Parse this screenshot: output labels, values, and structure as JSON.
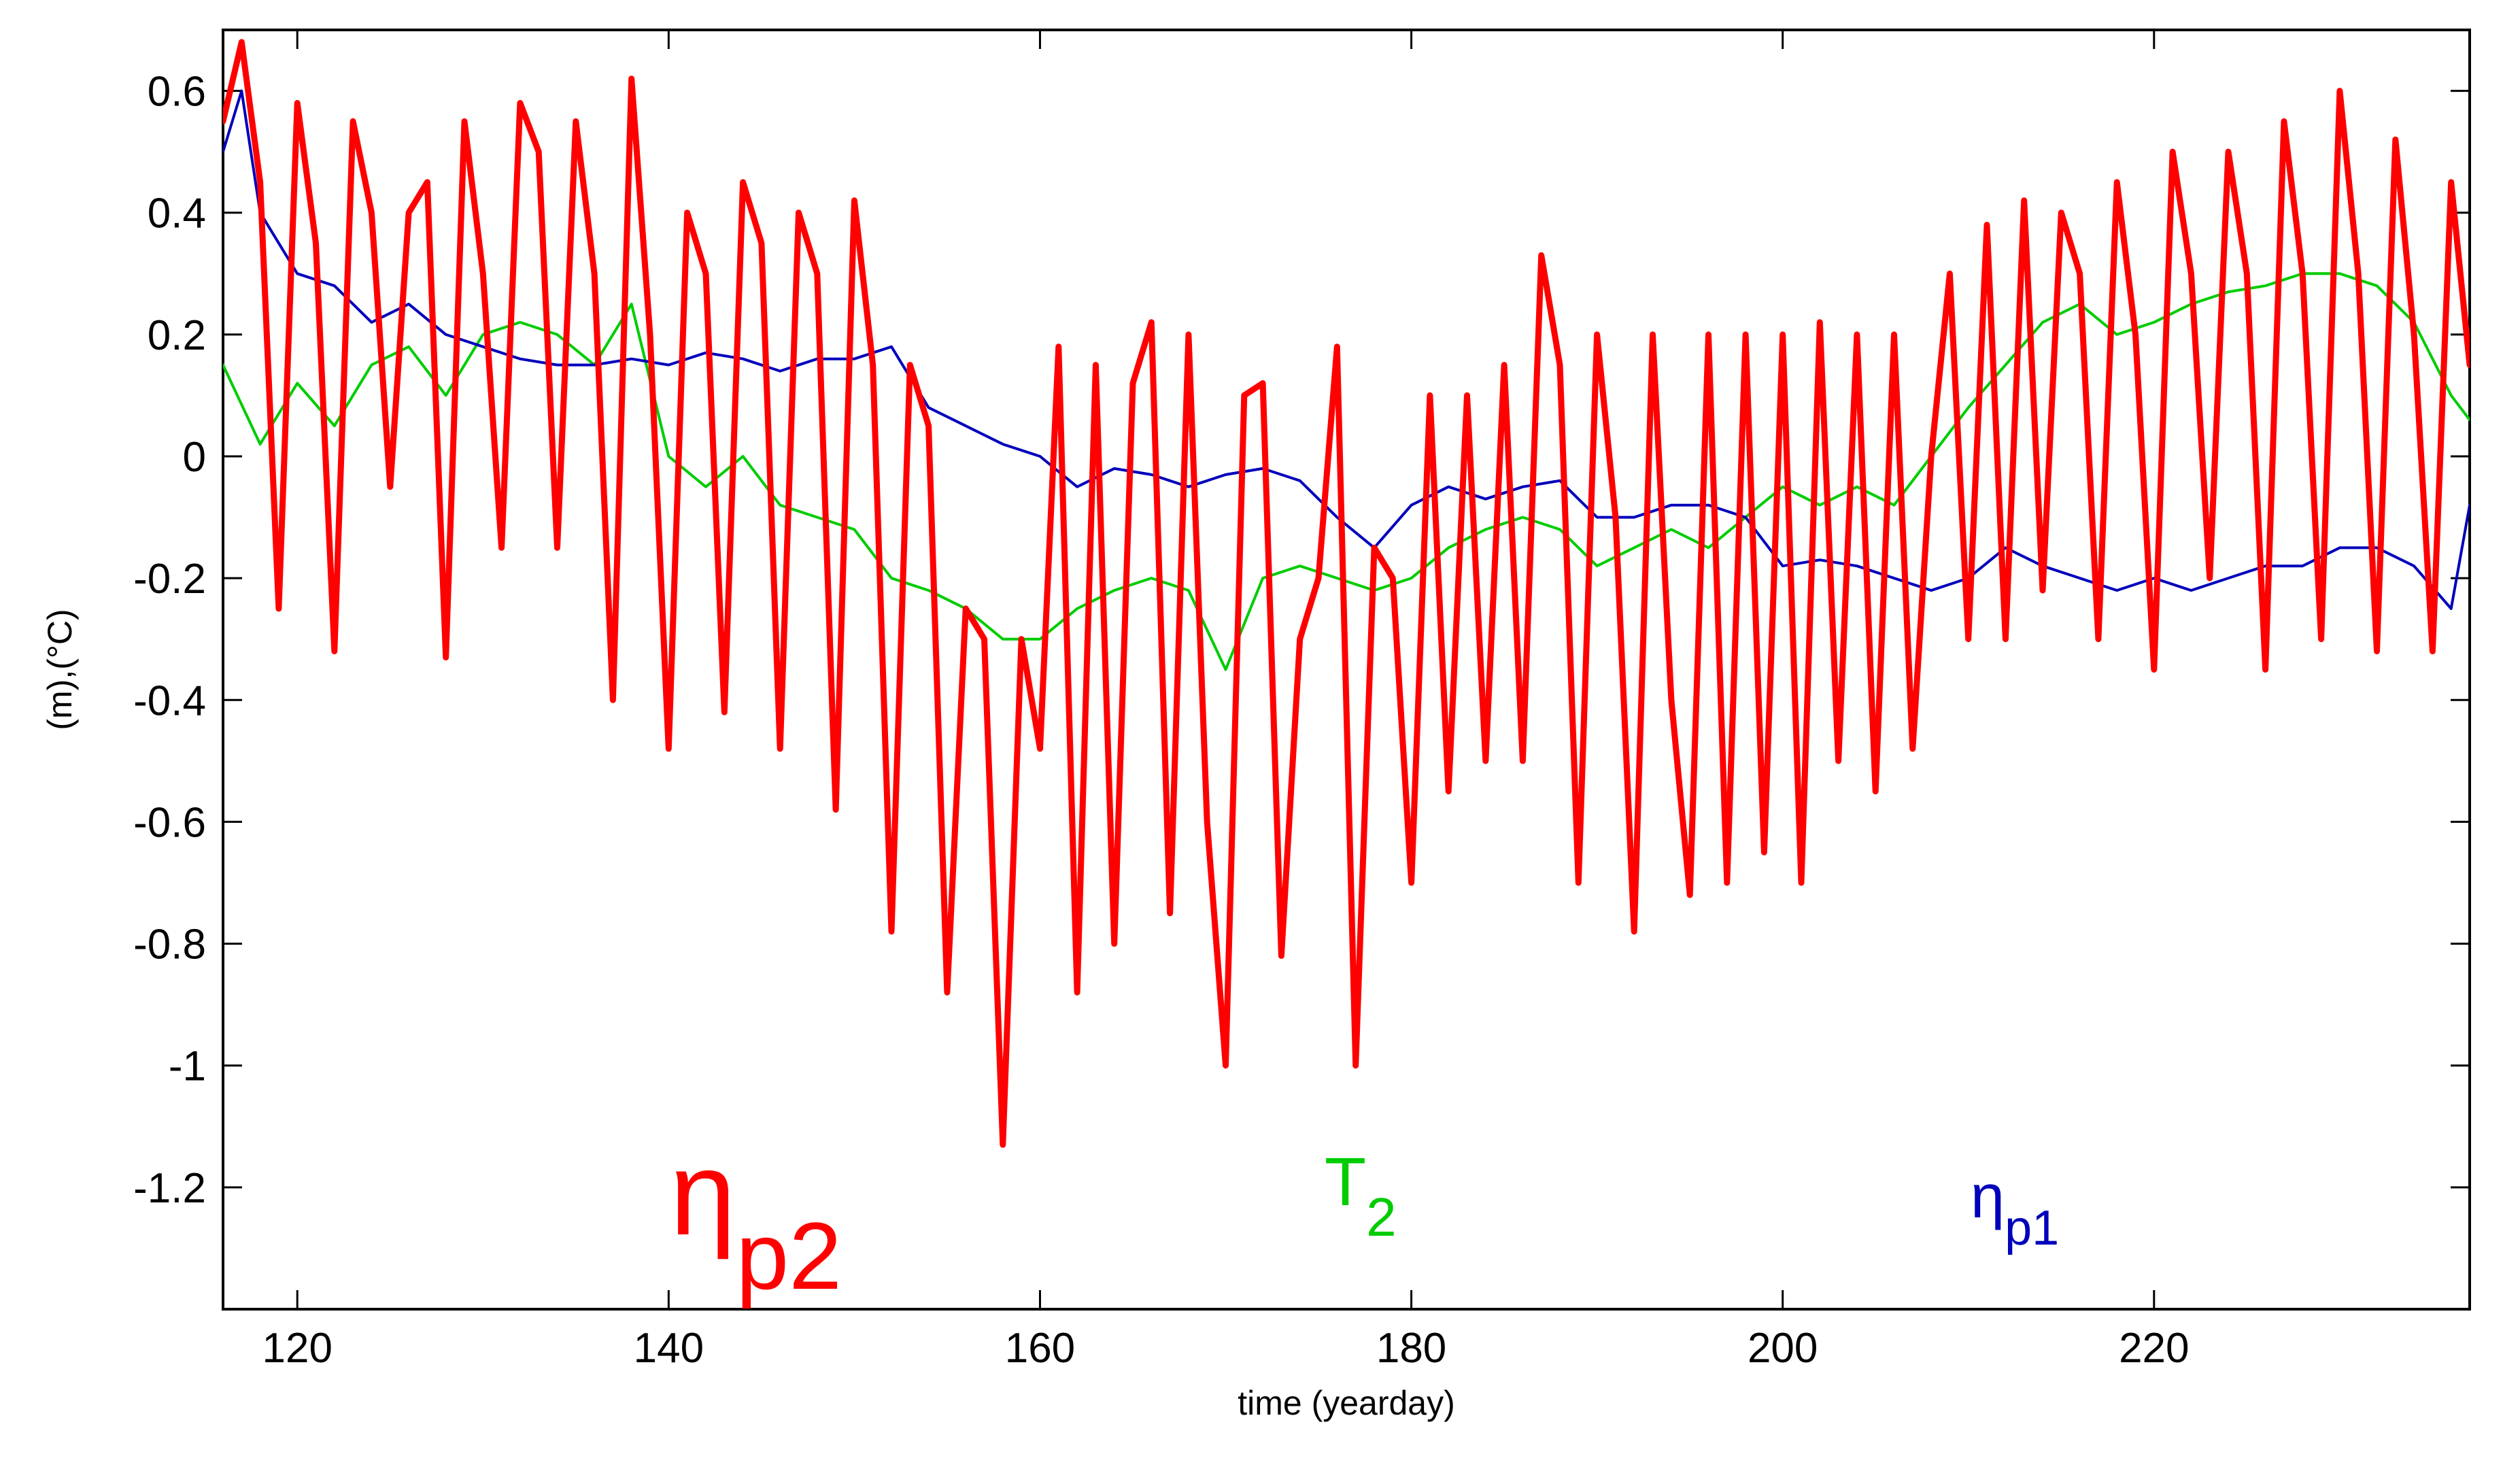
{
  "chart_data": {
    "type": "line",
    "title": "",
    "xlabel": "time (yearday)",
    "ylabel": "(m),(°C)",
    "xlim": [
      116,
      237
    ],
    "ylim": [
      -1.4,
      0.7
    ],
    "xticks": [
      120,
      140,
      160,
      180,
      200,
      220
    ],
    "yticks": [
      0.6,
      0.4,
      0.2,
      0,
      -0.2,
      -0.4,
      -0.6,
      -0.8,
      -1,
      -1.2
    ],
    "xtick_labels": [
      "120",
      "140",
      "160",
      "180",
      "200",
      "220"
    ],
    "ytick_labels": [
      "0.6",
      "0.4",
      "0.2",
      "0",
      "-0.2",
      "-0.4",
      "-0.6",
      "-0.8",
      "-1",
      "-1.2"
    ],
    "grid": false,
    "series": [
      {
        "name": "eta_p2",
        "label_main": "η",
        "label_sub": "p2",
        "color": "#ff0000",
        "x": [
          116,
          117,
          118,
          119,
          120,
          121,
          122,
          123,
          124,
          125,
          126,
          127,
          128,
          129,
          130,
          131,
          132,
          133,
          134,
          135,
          136,
          137,
          138,
          139,
          140,
          141,
          142,
          143,
          144,
          145,
          146,
          147,
          148,
          149,
          150,
          151,
          152,
          153,
          154,
          155,
          156,
          157,
          158,
          159,
          160,
          161,
          162,
          163,
          164,
          165,
          166,
          167,
          168,
          169,
          170,
          171,
          172,
          173,
          174,
          175,
          176,
          177,
          178,
          179,
          180,
          181,
          182,
          183,
          184,
          185,
          186,
          187,
          188,
          189,
          190,
          191,
          192,
          193,
          194,
          195,
          196,
          197,
          198,
          199,
          200,
          201,
          202,
          203,
          204,
          205,
          206,
          207,
          208,
          209,
          210,
          211,
          212,
          213,
          214,
          215,
          216,
          217,
          218,
          219,
          220,
          221,
          222,
          223,
          224,
          225,
          226,
          227,
          228,
          229,
          230,
          231,
          232,
          233,
          234,
          235,
          236,
          237
        ],
        "y": [
          0.55,
          0.68,
          0.45,
          -0.25,
          0.58,
          0.35,
          -0.32,
          0.55,
          0.4,
          -0.05,
          0.4,
          0.45,
          -0.33,
          0.55,
          0.3,
          -0.15,
          0.58,
          0.5,
          -0.15,
          0.55,
          0.3,
          -0.4,
          0.62,
          0.2,
          -0.48,
          0.4,
          0.3,
          -0.42,
          0.45,
          0.35,
          -0.48,
          0.4,
          0.3,
          -0.58,
          0.42,
          0.15,
          -0.78,
          0.15,
          0.05,
          -0.88,
          -0.25,
          -0.3,
          -1.13,
          -0.3,
          -0.48,
          0.18,
          -0.88,
          0.15,
          -0.8,
          0.12,
          0.22,
          -0.75,
          0.2,
          -0.6,
          -1.0,
          0.1,
          0.12,
          -0.82,
          -0.3,
          -0.2,
          0.18,
          -1.0,
          -0.15,
          -0.2,
          -0.7,
          0.1,
          -0.55,
          0.1,
          -0.5,
          0.15,
          -0.5,
          0.33,
          0.15,
          -0.7,
          0.2,
          -0.1,
          -0.78,
          0.2,
          -0.4,
          -0.72,
          0.2,
          -0.7,
          0.2,
          -0.65,
          0.2,
          -0.7,
          0.22,
          -0.5,
          0.2,
          -0.55,
          0.2,
          -0.48,
          0.0,
          0.3,
          -0.3,
          0.38,
          -0.3,
          0.42,
          -0.22,
          0.4,
          0.3,
          -0.3,
          0.45,
          0.2,
          -0.35,
          0.5,
          0.3,
          -0.2,
          0.5,
          0.3,
          -0.35,
          0.55,
          0.3,
          -0.3,
          0.6,
          0.3,
          -0.32,
          0.52,
          0.2,
          -0.32,
          0.45,
          0.15
        ]
      },
      {
        "name": "T2",
        "label_main": "T",
        "label_sub": "2",
        "color": "#00cc00",
        "x": [
          116,
          118,
          120,
          122,
          124,
          126,
          128,
          130,
          132,
          134,
          136,
          138,
          140,
          142,
          144,
          146,
          148,
          150,
          152,
          154,
          156,
          158,
          160,
          162,
          164,
          166,
          168,
          170,
          172,
          174,
          176,
          178,
          180,
          182,
          184,
          186,
          188,
          190,
          192,
          194,
          196,
          198,
          200,
          202,
          204,
          206,
          208,
          210,
          212,
          214,
          216,
          218,
          220,
          222,
          224,
          226,
          228,
          230,
          232,
          234,
          236,
          237
        ],
        "y": [
          0.15,
          0.02,
          0.12,
          0.05,
          0.15,
          0.18,
          0.1,
          0.2,
          0.22,
          0.2,
          0.15,
          0.25,
          0.0,
          -0.05,
          0.0,
          -0.08,
          -0.1,
          -0.12,
          -0.2,
          -0.22,
          -0.25,
          -0.3,
          -0.3,
          -0.25,
          -0.22,
          -0.2,
          -0.22,
          -0.35,
          -0.2,
          -0.18,
          -0.2,
          -0.22,
          -0.2,
          -0.15,
          -0.12,
          -0.1,
          -0.12,
          -0.18,
          -0.15,
          -0.12,
          -0.15,
          -0.1,
          -0.05,
          -0.08,
          -0.05,
          -0.08,
          0.0,
          0.08,
          0.15,
          0.22,
          0.25,
          0.2,
          0.22,
          0.25,
          0.27,
          0.28,
          0.3,
          0.3,
          0.28,
          0.22,
          0.1,
          0.06
        ]
      },
      {
        "name": "eta_p1",
        "label_main": "η",
        "label_sub": "p1",
        "color": "#0000bb",
        "x": [
          116,
          117,
          118,
          120,
          122,
          124,
          126,
          128,
          130,
          132,
          134,
          136,
          138,
          140,
          142,
          144,
          146,
          148,
          150,
          152,
          154,
          156,
          158,
          160,
          162,
          164,
          166,
          168,
          170,
          172,
          174,
          176,
          178,
          180,
          182,
          184,
          186,
          188,
          190,
          192,
          194,
          196,
          198,
          200,
          202,
          204,
          206,
          208,
          210,
          212,
          214,
          216,
          218,
          220,
          222,
          224,
          226,
          228,
          230,
          232,
          234,
          236,
          237
        ],
        "y": [
          0.5,
          0.6,
          0.4,
          0.3,
          0.28,
          0.22,
          0.25,
          0.2,
          0.18,
          0.16,
          0.15,
          0.15,
          0.16,
          0.15,
          0.17,
          0.16,
          0.14,
          0.16,
          0.16,
          0.18,
          0.08,
          0.05,
          0.02,
          0.0,
          -0.05,
          -0.02,
          -0.03,
          -0.05,
          -0.03,
          -0.02,
          -0.04,
          -0.1,
          -0.15,
          -0.08,
          -0.05,
          -0.07,
          -0.05,
          -0.04,
          -0.1,
          -0.1,
          -0.08,
          -0.08,
          -0.1,
          -0.18,
          -0.17,
          -0.18,
          -0.2,
          -0.22,
          -0.2,
          -0.15,
          -0.18,
          -0.2,
          -0.22,
          -0.2,
          -0.22,
          -0.2,
          -0.18,
          -0.18,
          -0.15,
          -0.15,
          -0.18,
          -0.25,
          -0.08
        ]
      }
    ]
  }
}
